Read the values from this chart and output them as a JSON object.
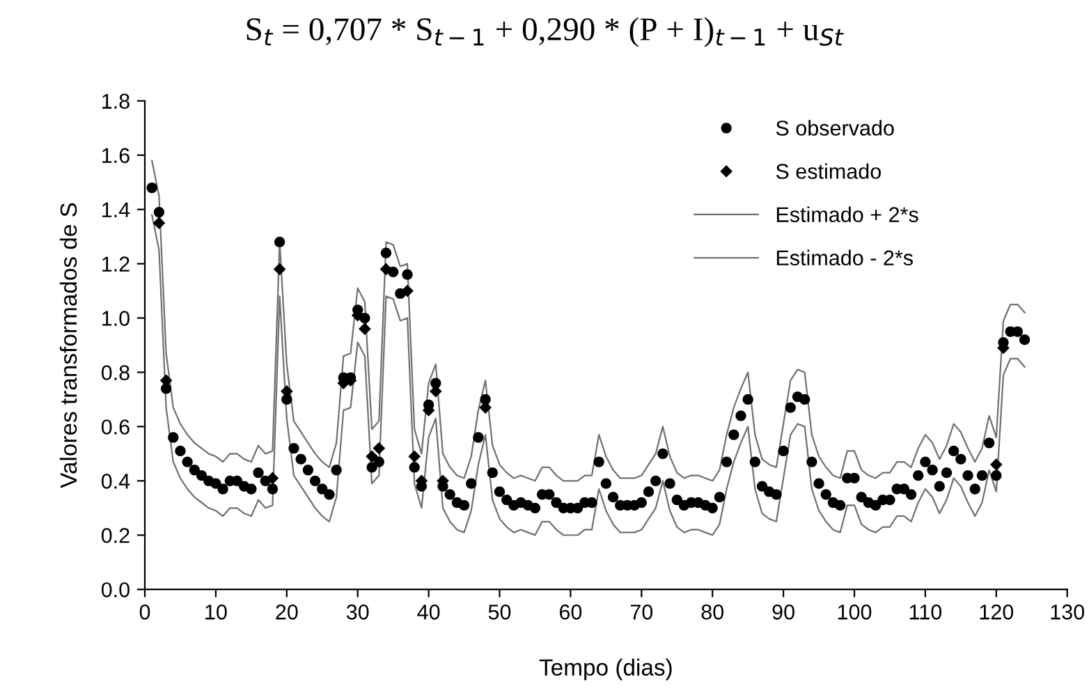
{
  "chart_data": {
    "type": "scatter",
    "title": "S$_{t}$ = 0,707 * S$_{t−1}$ + 0,290 * (P + I)$_{t−1}$ + u$_{St}$",
    "xlabel": "Tempo (dias)",
    "ylabel": "Valores transformados de S",
    "x": [
      1,
      2,
      3,
      4,
      5,
      6,
      7,
      8,
      9,
      10,
      11,
      12,
      13,
      14,
      15,
      16,
      17,
      18,
      19,
      20,
      21,
      22,
      23,
      24,
      25,
      26,
      27,
      28,
      29,
      30,
      31,
      32,
      33,
      34,
      35,
      36,
      37,
      38,
      39,
      40,
      41,
      42,
      43,
      44,
      45,
      46,
      47,
      48,
      49,
      50,
      51,
      52,
      53,
      54,
      55,
      56,
      57,
      58,
      59,
      60,
      61,
      62,
      63,
      64,
      65,
      66,
      67,
      68,
      69,
      70,
      71,
      72,
      73,
      74,
      75,
      76,
      77,
      78,
      79,
      80,
      81,
      82,
      83,
      84,
      85,
      86,
      87,
      88,
      89,
      90,
      91,
      92,
      93,
      94,
      95,
      96,
      97,
      98,
      99,
      100,
      101,
      102,
      103,
      104,
      105,
      106,
      107,
      108,
      109,
      110,
      111,
      112,
      113,
      114,
      115,
      116,
      117,
      118,
      119,
      120,
      121,
      122,
      123,
      124
    ],
    "series": [
      {
        "name": "S observado",
        "marker": "circle",
        "color": "#000000",
        "values": [
          1.48,
          1.39,
          0.74,
          0.56,
          0.51,
          0.47,
          0.44,
          0.42,
          0.4,
          0.39,
          0.37,
          0.4,
          0.4,
          0.38,
          0.37,
          0.43,
          0.4,
          0.37,
          1.28,
          0.7,
          0.52,
          0.48,
          0.44,
          0.4,
          0.37,
          0.35,
          0.44,
          0.78,
          0.78,
          1.03,
          1.0,
          0.45,
          0.47,
          1.24,
          1.17,
          1.09,
          1.16,
          0.45,
          0.38,
          0.68,
          0.76,
          0.38,
          0.35,
          0.32,
          0.31,
          0.39,
          0.56,
          0.7,
          0.43,
          0.36,
          0.33,
          0.31,
          0.32,
          0.31,
          0.3,
          0.35,
          0.35,
          0.32,
          0.3,
          0.3,
          0.3,
          0.32,
          0.32,
          0.47,
          0.39,
          0.34,
          0.31,
          0.31,
          0.31,
          0.32,
          0.36,
          0.4,
          0.5,
          0.39,
          0.33,
          0.31,
          0.32,
          0.32,
          0.31,
          0.3,
          0.34,
          0.47,
          0.57,
          0.64,
          0.7,
          0.47,
          0.38,
          0.36,
          0.35,
          0.51,
          0.67,
          0.71,
          0.7,
          0.47,
          0.39,
          0.35,
          0.32,
          0.31,
          0.41,
          0.41,
          0.34,
          0.32,
          0.31,
          0.33,
          0.33,
          0.37,
          0.37,
          0.35,
          0.42,
          0.47,
          0.44,
          0.38,
          0.43,
          0.51,
          0.48,
          0.42,
          0.37,
          0.42,
          0.54,
          0.42,
          0.91,
          0.95,
          0.95,
          0.92
        ]
      },
      {
        "name": "S estimado",
        "marker": "diamond",
        "color": "#000000",
        "values": [
          null,
          1.35,
          0.77,
          null,
          null,
          null,
          null,
          null,
          null,
          null,
          null,
          null,
          null,
          null,
          null,
          null,
          null,
          0.41,
          1.18,
          0.73,
          null,
          null,
          null,
          null,
          null,
          null,
          null,
          0.76,
          0.77,
          1.01,
          0.96,
          0.49,
          0.52,
          1.18,
          null,
          null,
          1.1,
          0.49,
          0.4,
          0.66,
          0.73,
          0.4,
          null,
          null,
          null,
          null,
          null,
          0.67,
          null,
          null,
          null,
          null,
          null,
          null,
          null,
          null,
          null,
          null,
          null,
          null,
          null,
          null,
          null,
          null,
          null,
          null,
          null,
          null,
          null,
          null,
          null,
          null,
          null,
          null,
          null,
          null,
          null,
          null,
          null,
          null,
          null,
          null,
          null,
          null,
          null,
          null,
          null,
          null,
          null,
          null,
          null,
          null,
          null,
          null,
          null,
          null,
          null,
          null,
          null,
          null,
          null,
          null,
          null,
          null,
          null,
          null,
          null,
          null,
          null,
          null,
          null,
          null,
          null,
          null,
          null,
          null,
          null,
          null,
          null,
          0.46,
          0.89,
          null,
          null,
          null
        ]
      },
      {
        "name": "Estimado + 2*s",
        "type": "line",
        "marker": "none",
        "line_style": "solid",
        "color": "#707070",
        "values": [
          1.58,
          1.45,
          0.87,
          0.67,
          0.61,
          0.57,
          0.54,
          0.52,
          0.5,
          0.49,
          0.47,
          0.5,
          0.5,
          0.48,
          0.47,
          0.53,
          0.5,
          0.51,
          1.28,
          0.83,
          0.62,
          0.58,
          0.54,
          0.5,
          0.47,
          0.45,
          0.54,
          0.86,
          0.87,
          1.11,
          1.06,
          0.59,
          0.62,
          1.28,
          1.27,
          1.19,
          1.2,
          0.59,
          0.5,
          0.76,
          0.83,
          0.5,
          0.45,
          0.42,
          0.41,
          0.49,
          0.66,
          0.77,
          0.53,
          0.46,
          0.43,
          0.41,
          0.42,
          0.41,
          0.4,
          0.45,
          0.45,
          0.42,
          0.4,
          0.4,
          0.4,
          0.42,
          0.42,
          0.57,
          0.49,
          0.44,
          0.41,
          0.41,
          0.41,
          0.42,
          0.46,
          0.5,
          0.6,
          0.49,
          0.43,
          0.41,
          0.42,
          0.42,
          0.41,
          0.4,
          0.44,
          0.57,
          0.67,
          0.74,
          0.8,
          0.57,
          0.48,
          0.46,
          0.45,
          0.61,
          0.77,
          0.81,
          0.8,
          0.57,
          0.49,
          0.45,
          0.42,
          0.41,
          0.51,
          0.51,
          0.44,
          0.42,
          0.41,
          0.43,
          0.43,
          0.47,
          0.47,
          0.45,
          0.52,
          0.57,
          0.54,
          0.48,
          0.53,
          0.61,
          0.58,
          0.52,
          0.47,
          0.52,
          0.64,
          0.56,
          0.99,
          1.05,
          1.05,
          1.02
        ]
      },
      {
        "name": "Estimado - 2*s",
        "type": "line",
        "marker": "none",
        "line_style": "solid",
        "color": "#707070",
        "values": [
          1.38,
          1.25,
          0.67,
          0.47,
          0.41,
          0.37,
          0.34,
          0.32,
          0.3,
          0.29,
          0.27,
          0.3,
          0.3,
          0.28,
          0.27,
          0.33,
          0.3,
          0.31,
          1.08,
          0.63,
          0.42,
          0.38,
          0.34,
          0.3,
          0.27,
          0.25,
          0.34,
          0.66,
          0.67,
          0.91,
          0.86,
          0.39,
          0.42,
          1.08,
          1.07,
          0.99,
          1.0,
          0.39,
          0.3,
          0.56,
          0.63,
          0.3,
          0.25,
          0.22,
          0.21,
          0.29,
          0.46,
          0.57,
          0.33,
          0.26,
          0.23,
          0.21,
          0.22,
          0.21,
          0.2,
          0.25,
          0.25,
          0.22,
          0.2,
          0.2,
          0.2,
          0.22,
          0.22,
          0.37,
          0.29,
          0.24,
          0.21,
          0.21,
          0.21,
          0.22,
          0.26,
          0.3,
          0.4,
          0.29,
          0.23,
          0.21,
          0.22,
          0.22,
          0.21,
          0.2,
          0.24,
          0.37,
          0.47,
          0.54,
          0.6,
          0.37,
          0.28,
          0.26,
          0.25,
          0.41,
          0.57,
          0.61,
          0.6,
          0.37,
          0.29,
          0.25,
          0.22,
          0.21,
          0.31,
          0.31,
          0.24,
          0.22,
          0.21,
          0.23,
          0.23,
          0.27,
          0.27,
          0.25,
          0.32,
          0.37,
          0.34,
          0.28,
          0.33,
          0.41,
          0.38,
          0.32,
          0.27,
          0.32,
          0.44,
          0.36,
          0.79,
          0.85,
          0.85,
          0.82
        ]
      }
    ],
    "xlim": [
      0,
      130
    ],
    "xticks": [
      0,
      10,
      20,
      30,
      40,
      50,
      60,
      70,
      80,
      90,
      100,
      110,
      120,
      130
    ],
    "ylim": [
      0,
      1.8
    ],
    "yticks": [
      {
        "value": 0,
        "label": "0.0"
      },
      {
        "value": 0.2,
        "label": "0.2"
      },
      {
        "value": 0.4,
        "label": "0.4"
      },
      {
        "value": 0.6,
        "label": "0.6"
      },
      {
        "value": 0.8,
        "label": "0.8"
      },
      {
        "value": 1.0,
        "label": "1.0"
      },
      {
        "value": 1.2,
        "label": "1.2"
      },
      {
        "value": 1.4,
        "label": "1.4"
      },
      {
        "value": 1.6,
        "label": "1.6"
      },
      {
        "value": 1.8,
        "label": "1.8"
      }
    ],
    "grid": false,
    "legend": "top right"
  }
}
